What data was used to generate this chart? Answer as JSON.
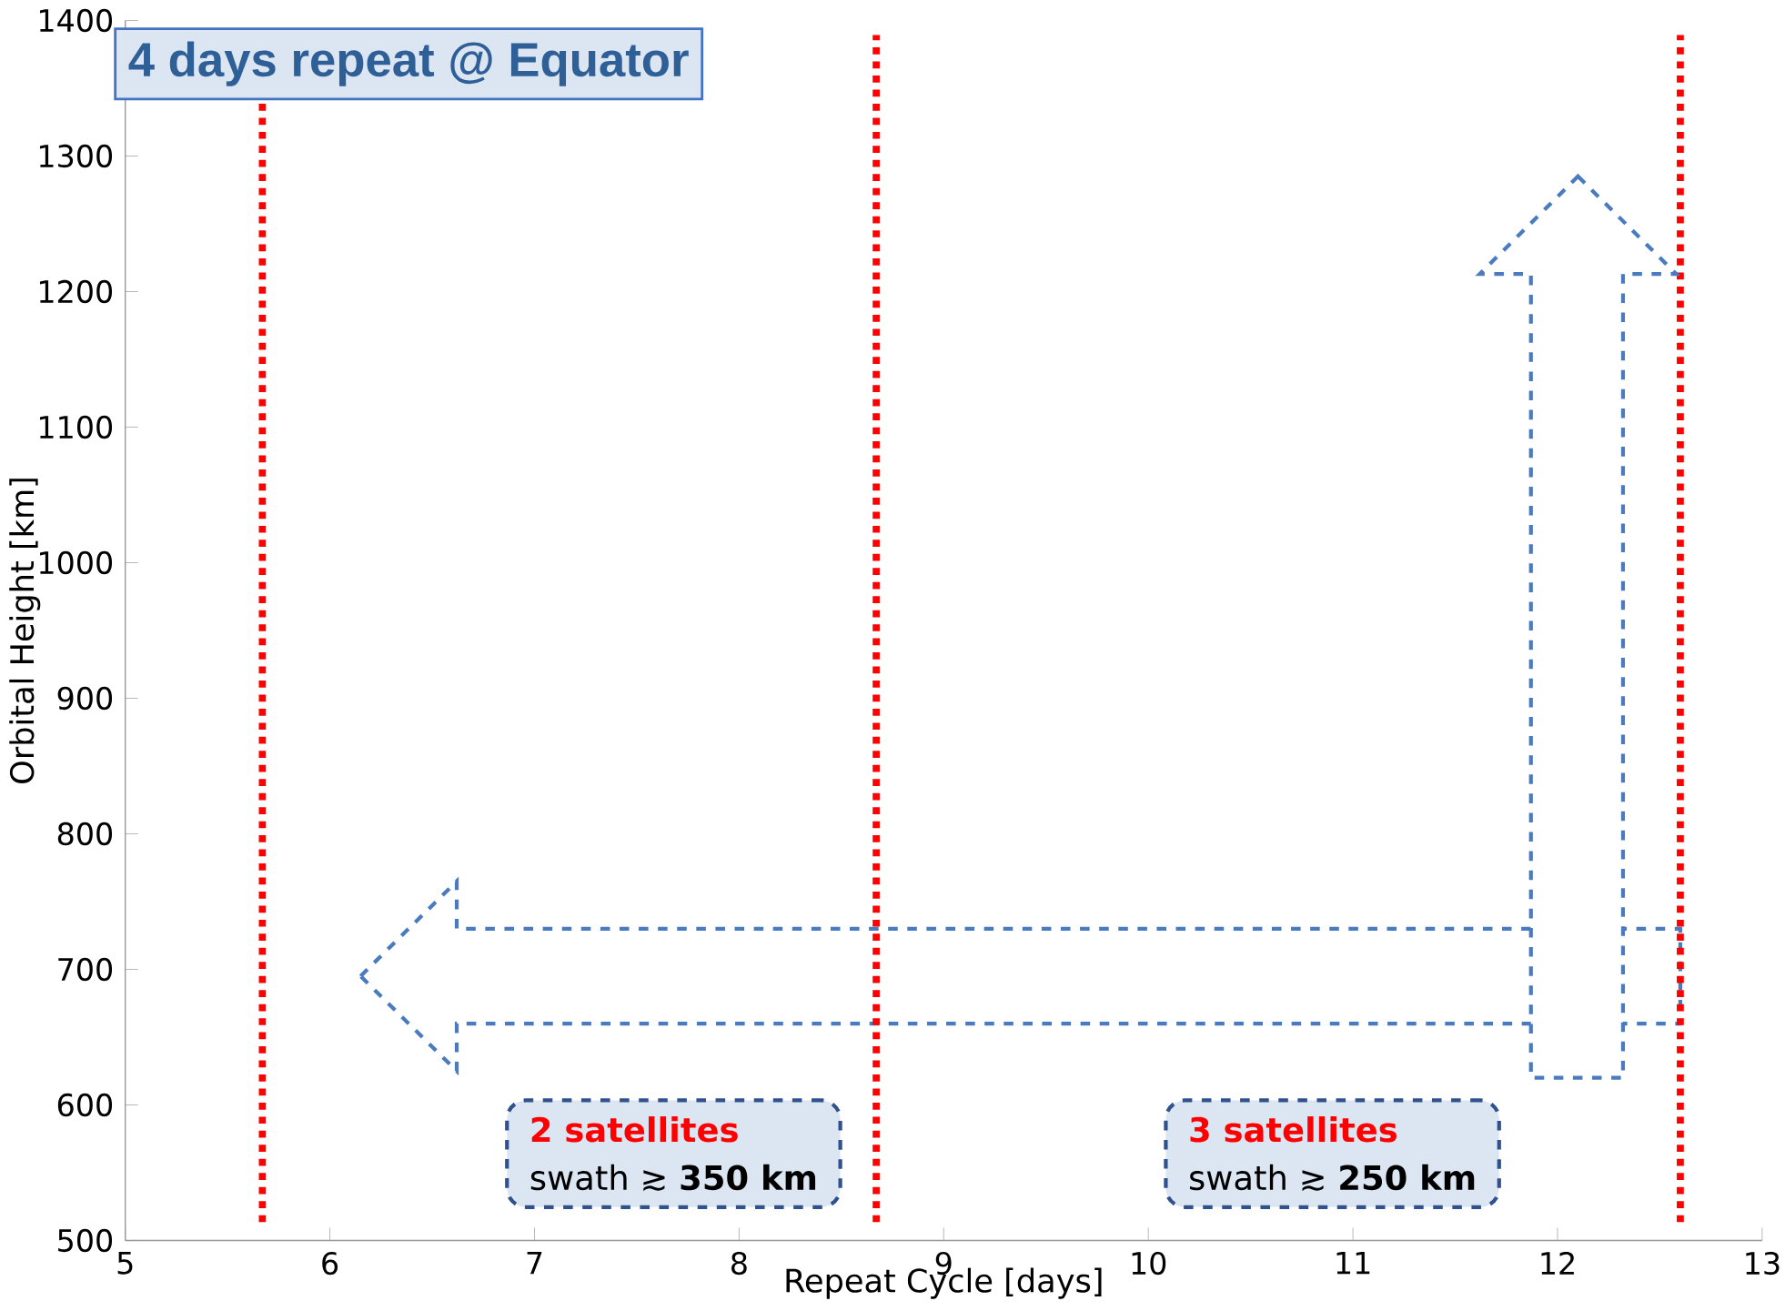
{
  "chart_data": {
    "type": "line",
    "title": "4 days repeat @ Equator",
    "xlabel": "Repeat Cycle [days]",
    "ylabel": "Orbital Height [km]",
    "xlim": [
      5,
      13
    ],
    "xticks": [
      5,
      6,
      7,
      8,
      9,
      10,
      11,
      12,
      13
    ],
    "ylim": [
      500,
      1400
    ],
    "yticks": [
      500,
      600,
      700,
      800,
      900,
      1000,
      1100,
      1200,
      1300,
      1400
    ],
    "ref_lines": [
      {
        "axis": "x",
        "value": 5.67,
        "color": "#ff0000",
        "line_style": "dotted"
      },
      {
        "axis": "x",
        "value": 8.67,
        "color": "#ff0000",
        "line_style": "dotted"
      },
      {
        "axis": "x",
        "value": 12.6,
        "color": "#ff0000",
        "line_style": "dotted"
      }
    ],
    "annotations": [
      "2 satellites",
      "swath ≳ **350 km**",
      "3 satellites",
      "swath ≳ **250 km**"
    ]
  }
}
